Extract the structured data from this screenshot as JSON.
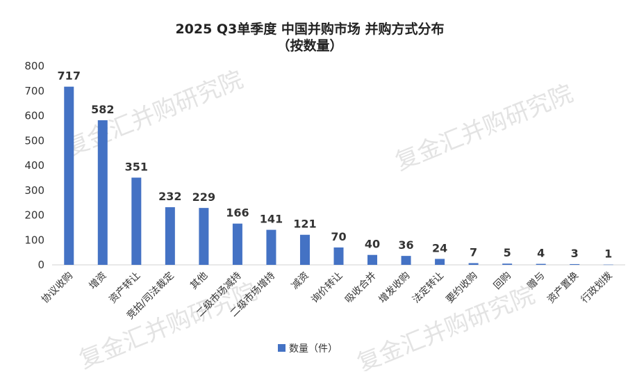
{
  "chart_data": {
    "type": "bar",
    "title": [
      "2025 Q3单季度 中国并购市场 并购方式分布",
      "（按数量）"
    ],
    "xlabel": "",
    "ylabel": "",
    "ylim": [
      0,
      800
    ],
    "yticks": [
      0,
      100,
      200,
      300,
      400,
      500,
      600,
      700,
      800
    ],
    "grid": false,
    "legend": "bottom",
    "categories": [
      "协议收购",
      "增资",
      "资产转让",
      "竞拍/司法裁定",
      "其他",
      "二级市场减持",
      "二级市场增持",
      "减资",
      "询价转让",
      "吸收合并",
      "增发收购",
      "法定转让",
      "要约收购",
      "回购",
      "赠与",
      "资产置换",
      "行政划拨"
    ],
    "series": [
      {
        "name": "数量（件）",
        "color": "#4472C4",
        "values": [
          717,
          582,
          351,
          232,
          229,
          166,
          141,
          121,
          70,
          40,
          36,
          24,
          7,
          5,
          4,
          3,
          1
        ]
      }
    ]
  },
  "watermark": "复金汇并购研究院"
}
